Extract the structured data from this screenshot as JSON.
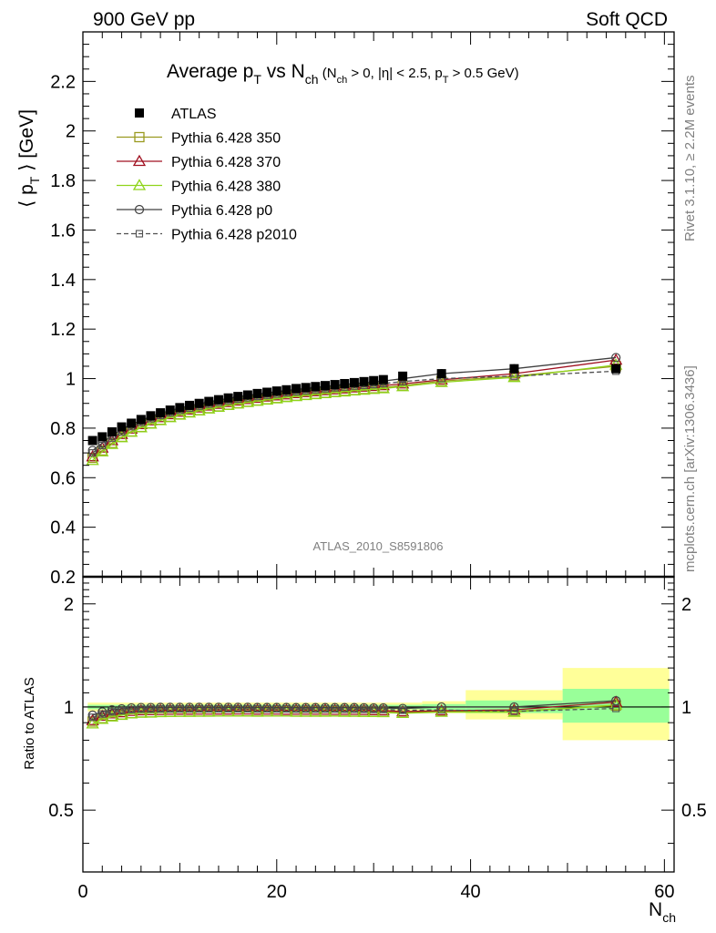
{
  "header": {
    "left": "900 GeV pp",
    "right": "Soft QCD"
  },
  "side": {
    "rivet": "Rivet 3.1.10, ≥ 2.2M events",
    "mcplots": "mcplots.cern.ch [arXiv:1306.3436]"
  },
  "chart_data": [
    {
      "type": "line",
      "title_parts": {
        "pre": "Average p",
        "sub1": "T",
        "mid": " vs N",
        "sub2": "ch",
        "cut_a": " (N",
        "cut_a_sub": "ch",
        "cut_b": " > 0, |η| < 2.5, p",
        "cut_b_sub": "T",
        "cut_c": " > 0.5 GeV)"
      },
      "ylabel": "⟨ p_T ⟩ [GeV]",
      "ylabel_parts": {
        "a": "⟨ p",
        "sub": "T",
        "b": " ⟩ [GeV]"
      },
      "watermark": "ATLAS_2010_S8591806",
      "xlim": [
        0,
        61
      ],
      "ylim": [
        0.2,
        2.4
      ],
      "yticks": [
        0.2,
        0.4,
        0.6,
        0.8,
        1,
        1.2,
        1.4,
        1.6,
        1.8,
        2,
        2.2
      ],
      "ytick_labels": [
        "0.2",
        "0.4",
        "0.6",
        "0.8",
        "1",
        "1.2",
        "1.4",
        "1.6",
        "1.8",
        "2",
        "2.2"
      ],
      "legend_position": "top-left",
      "x": [
        1,
        2,
        3,
        4,
        5,
        6,
        7,
        8,
        9,
        10,
        11,
        12,
        13,
        14,
        15,
        16,
        17,
        18,
        19,
        20,
        21,
        22,
        23,
        24,
        25,
        26,
        27,
        28,
        29,
        30,
        31,
        33,
        37,
        44.5,
        55
      ],
      "series": [
        {
          "name": "ATLAS",
          "color": "#000000",
          "marker": "filled-square",
          "values": [
            0.75,
            0.765,
            0.785,
            0.805,
            0.82,
            0.835,
            0.85,
            0.862,
            0.873,
            0.883,
            0.892,
            0.9,
            0.908,
            0.915,
            0.922,
            0.928,
            0.934,
            0.94,
            0.945,
            0.95,
            0.955,
            0.96,
            0.964,
            0.968,
            0.972,
            0.976,
            0.98,
            0.984,
            0.988,
            0.992,
            0.996,
            1.01,
            1.02,
            1.04,
            1.04
          ]
        },
        {
          "name": "Pythia 6.428 350",
          "color": "#9a9a20",
          "marker": "open-square",
          "values": [
            0.68,
            0.71,
            0.74,
            0.765,
            0.787,
            0.805,
            0.82,
            0.834,
            0.846,
            0.856,
            0.865,
            0.873,
            0.881,
            0.888,
            0.895,
            0.901,
            0.907,
            0.912,
            0.917,
            0.922,
            0.927,
            0.931,
            0.935,
            0.939,
            0.943,
            0.947,
            0.951,
            0.954,
            0.958,
            0.961,
            0.964,
            0.972,
            0.99,
            1.01,
            1.05
          ]
        },
        {
          "name": "Pythia 6.428 370",
          "color": "#a01020",
          "marker": "open-triangle",
          "values": [
            0.685,
            0.72,
            0.75,
            0.775,
            0.797,
            0.815,
            0.83,
            0.843,
            0.855,
            0.865,
            0.874,
            0.882,
            0.89,
            0.897,
            0.904,
            0.91,
            0.916,
            0.921,
            0.926,
            0.931,
            0.935,
            0.94,
            0.944,
            0.948,
            0.952,
            0.955,
            0.959,
            0.963,
            0.966,
            0.969,
            0.972,
            0.979,
            0.995,
            1.02,
            1.075
          ]
        },
        {
          "name": "Pythia 6.428 380",
          "color": "#8fd41a",
          "marker": "open-triangle",
          "values": [
            0.67,
            0.705,
            0.735,
            0.762,
            0.784,
            0.802,
            0.817,
            0.831,
            0.843,
            0.853,
            0.862,
            0.87,
            0.878,
            0.885,
            0.892,
            0.898,
            0.904,
            0.909,
            0.914,
            0.919,
            0.924,
            0.928,
            0.932,
            0.936,
            0.94,
            0.944,
            0.947,
            0.951,
            0.954,
            0.957,
            0.96,
            0.968,
            0.985,
            1.005,
            1.055
          ]
        },
        {
          "name": "Pythia 6.428 p0",
          "color": "#404040",
          "marker": "open-circle",
          "values": [
            0.71,
            0.74,
            0.77,
            0.795,
            0.815,
            0.832,
            0.847,
            0.86,
            0.871,
            0.881,
            0.89,
            0.898,
            0.906,
            0.913,
            0.92,
            0.926,
            0.932,
            0.937,
            0.942,
            0.947,
            0.952,
            0.956,
            0.96,
            0.964,
            0.968,
            0.972,
            0.976,
            0.98,
            0.983,
            0.986,
            0.99,
            1.0,
            1.02,
            1.04,
            1.085
          ]
        },
        {
          "name": "Pythia 6.428 p2010",
          "color": "#505050",
          "marker": "open-small-square",
          "dashed": true,
          "values": [
            0.7,
            0.73,
            0.76,
            0.785,
            0.806,
            0.823,
            0.838,
            0.851,
            0.862,
            0.872,
            0.881,
            0.889,
            0.897,
            0.904,
            0.911,
            0.917,
            0.923,
            0.928,
            0.933,
            0.938,
            0.943,
            0.947,
            0.951,
            0.955,
            0.959,
            0.963,
            0.966,
            0.97,
            0.973,
            0.976,
            0.98,
            0.988,
            1.0,
            1.01,
            1.03
          ]
        }
      ]
    },
    {
      "type": "line",
      "ylabel": "Ratio to ATLAS",
      "xlabel": "N_ch",
      "xlabel_parts": {
        "a": "N",
        "sub": "ch"
      },
      "xlim": [
        0,
        61
      ],
      "ylim": [
        0.33,
        2.4
      ],
      "log_scale_y": true,
      "xticks": [
        0,
        20,
        40,
        60
      ],
      "xtick_labels": [
        "0",
        "20",
        "40",
        "60"
      ],
      "yticks": [
        0.5,
        1,
        2
      ],
      "ytick_labels": [
        "0.5",
        "1",
        "2"
      ],
      "bands": [
        {
          "x0": 0.5,
          "x1": 35,
          "stat": [
            0.985,
            1.015
          ],
          "tot": [
            0.97,
            1.03
          ]
        },
        {
          "x0": 35,
          "x1": 39.5,
          "stat": [
            0.98,
            1.02
          ],
          "tot": [
            0.96,
            1.04
          ]
        },
        {
          "x0": 39.5,
          "x1": 49.5,
          "stat": [
            0.96,
            1.045
          ],
          "tot": [
            0.92,
            1.12
          ]
        },
        {
          "x0": 49.5,
          "x1": 60.5,
          "stat": [
            0.9,
            1.13
          ],
          "tot": [
            0.8,
            1.3
          ]
        }
      ],
      "band_colors": {
        "stat": "#99ff99",
        "total": "#ffff99"
      }
    }
  ]
}
